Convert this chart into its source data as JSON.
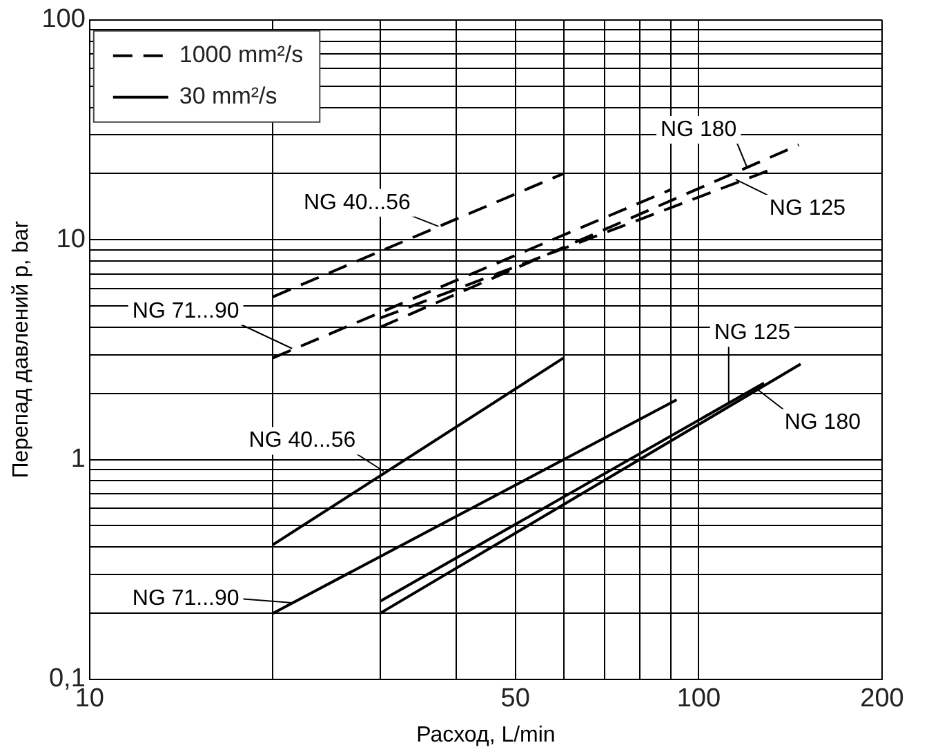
{
  "chart_data": {
    "type": "line",
    "xlabel": "Расход, L/min",
    "ylabel": "Перепад давлений p, bar",
    "log": "xy",
    "grid": true,
    "legend": "top left",
    "marker": "none",
    "xlim": [
      10,
      200
    ],
    "xticks": [
      10,
      {
        "value": 20,
        "label": null
      },
      {
        "value": 30,
        "label": null
      },
      {
        "value": 40,
        "label": null
      },
      50,
      {
        "value": 60,
        "label": null
      },
      {
        "value": 70,
        "label": null
      },
      {
        "value": 80,
        "label": null
      },
      {
        "value": 90,
        "label": null
      },
      100,
      200
    ],
    "ylim": [
      0.1,
      100
    ],
    "yticks": [
      {
        "value": 0.1,
        "label": "0,1"
      },
      {
        "value": 0.2,
        "label": null
      },
      {
        "value": 0.3,
        "label": null
      },
      {
        "value": 0.4,
        "label": null
      },
      {
        "value": 0.5,
        "label": null
      },
      {
        "value": 0.6,
        "label": null
      },
      {
        "value": 0.7,
        "label": null
      },
      {
        "value": 0.8,
        "label": null
      },
      {
        "value": 0.9,
        "label": null
      },
      1,
      {
        "value": 2,
        "label": null
      },
      {
        "value": 3,
        "label": null
      },
      {
        "value": 4,
        "label": null
      },
      {
        "value": 5,
        "label": null
      },
      {
        "value": 6,
        "label": null
      },
      {
        "value": 7,
        "label": null
      },
      {
        "value": 8,
        "label": null
      },
      {
        "value": 9,
        "label": null
      },
      10,
      {
        "value": 20,
        "label": null
      },
      {
        "value": 30,
        "label": null
      },
      {
        "value": 40,
        "label": null
      },
      {
        "value": 50,
        "label": null
      },
      {
        "value": 60,
        "label": null
      },
      {
        "value": 70,
        "label": null
      },
      {
        "value": 80,
        "label": null
      },
      {
        "value": 90,
        "label": null
      },
      100
    ],
    "series": [
      {
        "name": "1000 mm²/s",
        "color": "#000000",
        "line_style": "dashed",
        "x": [
          20,
          60
        ],
        "values": [
          5.5,
          20
        ]
      },
      {
        "color": "#000000",
        "line_style": "dashed",
        "x": [
          20,
          90
        ],
        "values": [
          2.9,
          16.9
        ]
      },
      {
        "color": "#000000",
        "line_style": "dashed",
        "x": [
          30,
          130
        ],
        "values": [
          4.4,
          20.6
        ]
      },
      {
        "color": "#000000",
        "line_style": "dashed",
        "x": [
          30,
          146
        ],
        "values": [
          4.0,
          27
        ]
      },
      {
        "name": "30 mm²/s",
        "color": "#000000",
        "line_style": "solid",
        "x": [
          20,
          60
        ],
        "values": [
          0.41,
          2.9
        ]
      },
      {
        "color": "#000000",
        "line_style": "solid",
        "x": [
          20,
          92
        ],
        "values": [
          0.2,
          1.87
        ]
      },
      {
        "color": "#000000",
        "line_style": "solid",
        "x": [
          30,
          128
        ],
        "values": [
          0.227,
          2.23
        ]
      },
      {
        "color": "#000000",
        "line_style": "solid",
        "x": [
          30,
          147
        ],
        "values": [
          0.2,
          2.72
        ]
      }
    ],
    "annotations": [
      {
        "text": "NG 40...56",
        "x": 37.4,
        "y": 11.5
      },
      {
        "text": "NG 71...90",
        "x": 21.5,
        "y": 3.2
      },
      {
        "text": "NG 180",
        "x": 120,
        "y": 21.4
      },
      {
        "text": "NG 125",
        "x": 115,
        "y": 18.8
      },
      {
        "text": "NG 40...56",
        "x": 30.4,
        "y": 0.885
      },
      {
        "text": "NG 71...90",
        "x": 21.5,
        "y": 0.223
      },
      {
        "text": "NG 125",
        "x": 112,
        "y": 1.8
      },
      {
        "text": "NG 180",
        "x": 125,
        "y": 2.08
      }
    ]
  }
}
